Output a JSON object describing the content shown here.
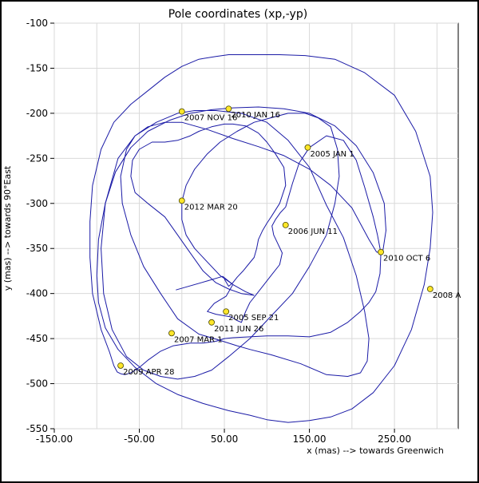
{
  "chart_data": {
    "type": "line",
    "title": "Pole coordinates (xp,-yp)",
    "xlabel": "x (mas) --> towards Greenwich",
    "ylabel": "y (mas) --> towards 90°East",
    "xlim": [
      -150,
      325
    ],
    "ylim": [
      -550,
      -100
    ],
    "xticks": [
      "-150.00",
      "-50.00",
      "50.00",
      "150.00",
      "250.00"
    ],
    "xtick_values": [
      -150,
      -50,
      50,
      150,
      250
    ],
    "yticks": [
      "-100",
      "-150",
      "-200",
      "-250",
      "-300",
      "-350",
      "-400",
      "-450",
      "-500",
      "-550"
    ],
    "ytick_values": [
      -100,
      -150,
      -200,
      -250,
      -300,
      -350,
      -400,
      -450,
      -500,
      -550
    ],
    "grid": true,
    "line_color": "#1a1aa6",
    "marker_color": "#ffe629",
    "series": [
      {
        "x": [
          -7,
          30,
          48,
          60,
          52,
          38,
          30,
          40,
          58,
          65,
          70,
          75,
          80,
          90,
          105,
          115,
          118,
          112,
          108,
          106,
          110,
          116,
          122
        ],
        "y": [
          -396,
          -386,
          -381,
          -390,
          -403,
          -411,
          -420,
          -423,
          -426,
          -430,
          -432,
          -420,
          -410,
          -398,
          -380,
          -368,
          -355,
          -343,
          -335,
          -325,
          -318,
          -310,
          -304
        ]
      },
      {
        "x": [
          122,
          130,
          138,
          150,
          170,
          190,
          205,
          215,
          225,
          230,
          234,
          233,
          228,
          220,
          210,
          195,
          175,
          150,
          125,
          100,
          80,
          60,
          50,
          40,
          25,
          10,
          -10,
          -25,
          -40,
          -50,
          -60,
          -67,
          -72,
          -76,
          -80
        ],
        "y": [
          -304,
          -278,
          -255,
          -238,
          -225,
          -230,
          -252,
          -282,
          -315,
          -335,
          -355,
          -378,
          -398,
          -410,
          -420,
          -432,
          -443,
          -448,
          -447,
          -447,
          -448,
          -449,
          -450,
          -453,
          -455,
          -455,
          -458,
          -464,
          -474,
          -482,
          -488,
          -490,
          -489,
          -487,
          -480
        ]
      },
      {
        "x": [
          -80,
          -85,
          -95,
          -105,
          -108,
          -108,
          -105,
          -95,
          -80,
          -60,
          -40,
          -20,
          0,
          20,
          40,
          55,
          70,
          90,
          115,
          145,
          180,
          215,
          250,
          275,
          292,
          295,
          292,
          285,
          270,
          250,
          225,
          200,
          175,
          150,
          125,
          100,
          80
        ],
        "y": [
          -480,
          -465,
          -440,
          -400,
          -360,
          -320,
          -280,
          -240,
          -210,
          -190,
          -175,
          -160,
          -148,
          -140,
          -137,
          -135,
          -135,
          -135,
          -135,
          -136,
          -140,
          -155,
          -180,
          -220,
          -270,
          -310,
          -350,
          -390,
          -440,
          -480,
          -510,
          -528,
          -537,
          -541,
          -543,
          -540,
          -535
        ]
      },
      {
        "x": [
          80,
          55,
          25,
          -5,
          -30,
          -55,
          -75,
          -90,
          -98,
          -100,
          -98,
          -90,
          -78,
          -60,
          -40,
          -15,
          10,
          35,
          60,
          90,
          120,
          150,
          180,
          205,
          225,
          238,
          240,
          236,
          229
        ],
        "y": [
          -535,
          -530,
          -522,
          -512,
          -500,
          -482,
          -462,
          -438,
          -410,
          -380,
          -340,
          -300,
          -265,
          -238,
          -220,
          -208,
          -200,
          -196,
          -194,
          -193,
          -195,
          -200,
          -214,
          -236,
          -266,
          -300,
          -330,
          -355,
          -354
        ]
      },
      {
        "x": [
          229,
          220,
          200,
          175,
          150,
          120,
          90,
          60,
          30,
          0,
          -20,
          -40,
          -55,
          -65,
          -72,
          -70,
          -60,
          -45,
          -25,
          -5,
          20,
          45,
          65,
          80,
          105,
          140,
          170,
          195,
          210,
          218,
          220,
          215,
          205,
          190,
          170,
          150,
          125,
          100,
          70,
          40,
          15,
          -5,
          -30,
          -55,
          -75,
          -90,
          -95,
          -92,
          -82,
          -65,
          -45,
          -25,
          -5,
          15,
          35,
          55,
          80,
          105,
          130,
          150,
          170
        ],
        "y": [
          -354,
          -340,
          -305,
          -280,
          -262,
          -247,
          -237,
          -228,
          -218,
          -210,
          -210,
          -215,
          -225,
          -240,
          -270,
          -300,
          -335,
          -370,
          -400,
          -428,
          -445,
          -452,
          -458,
          -462,
          -468,
          -478,
          -490,
          -492,
          -488,
          -475,
          -450,
          -420,
          -380,
          -338,
          -302,
          -260,
          -230,
          -210,
          -200,
          -197,
          -197,
          -200,
          -210,
          -225,
          -250,
          -300,
          -350,
          -400,
          -440,
          -470,
          -485,
          -492,
          -495,
          -492,
          -485,
          -470,
          -450,
          -425,
          -400,
          -370,
          -335
        ]
      },
      {
        "x": [
          170,
          180,
          185,
          183,
          175,
          160,
          145,
          125,
          105,
          85,
          65,
          45,
          30,
          15,
          5,
          0,
          0,
          5,
          15,
          30,
          45,
          60,
          75,
          85
        ],
        "y": [
          -335,
          -300,
          -270,
          -240,
          -215,
          -205,
          -200,
          -200,
          -205,
          -210,
          -220,
          -232,
          -245,
          -262,
          -280,
          -298,
          -318,
          -335,
          -350,
          -365,
          -380,
          -390,
          -398,
          -402
        ]
      },
      {
        "x": [
          85,
          70,
          55,
          40,
          25,
          10,
          -5,
          -20,
          -40,
          -55,
          -60,
          -58,
          -50,
          -35,
          -20,
          -5,
          10,
          20,
          35,
          50,
          60,
          75,
          90,
          100,
          110,
          120,
          122,
          115,
          105,
          100,
          95,
          90,
          88,
          85,
          78,
          72,
          65,
          60,
          55,
          50
        ],
        "y": [
          -402,
          -400,
          -395,
          -388,
          -375,
          -355,
          -335,
          -315,
          -300,
          -288,
          -270,
          -252,
          -240,
          -232,
          -232,
          -230,
          -225,
          -220,
          -215,
          -212,
          -212,
          -214,
          -222,
          -232,
          -245,
          -260,
          -280,
          -300,
          -315,
          -322,
          -330,
          -340,
          -350,
          -360,
          -368,
          -375,
          -382,
          -388,
          -392,
          -384
        ]
      }
    ],
    "annotations": [
      {
        "label": "2005 JAN 1",
        "x": 148,
        "y": -238
      },
      {
        "label": "2005 SEP 21",
        "x": 52,
        "y": -420
      },
      {
        "label": "2006 JUN 11",
        "x": 122,
        "y": -324
      },
      {
        "label": "2007 MAR 1",
        "x": -12,
        "y": -444
      },
      {
        "label": "2007 NOV 16",
        "x": 0,
        "y": -198
      },
      {
        "label": "2008 A",
        "x": 292,
        "y": -395
      },
      {
        "label": "2009 APR 28",
        "x": -72,
        "y": -480
      },
      {
        "label": "2010 JAN 16",
        "x": 55,
        "y": -195
      },
      {
        "label": "2010 OCT 6",
        "x": 234,
        "y": -354
      },
      {
        "label": "2011 JUN 26",
        "x": 35,
        "y": -432
      },
      {
        "label": "2012 MAR 20",
        "x": 0,
        "y": -297
      }
    ]
  }
}
